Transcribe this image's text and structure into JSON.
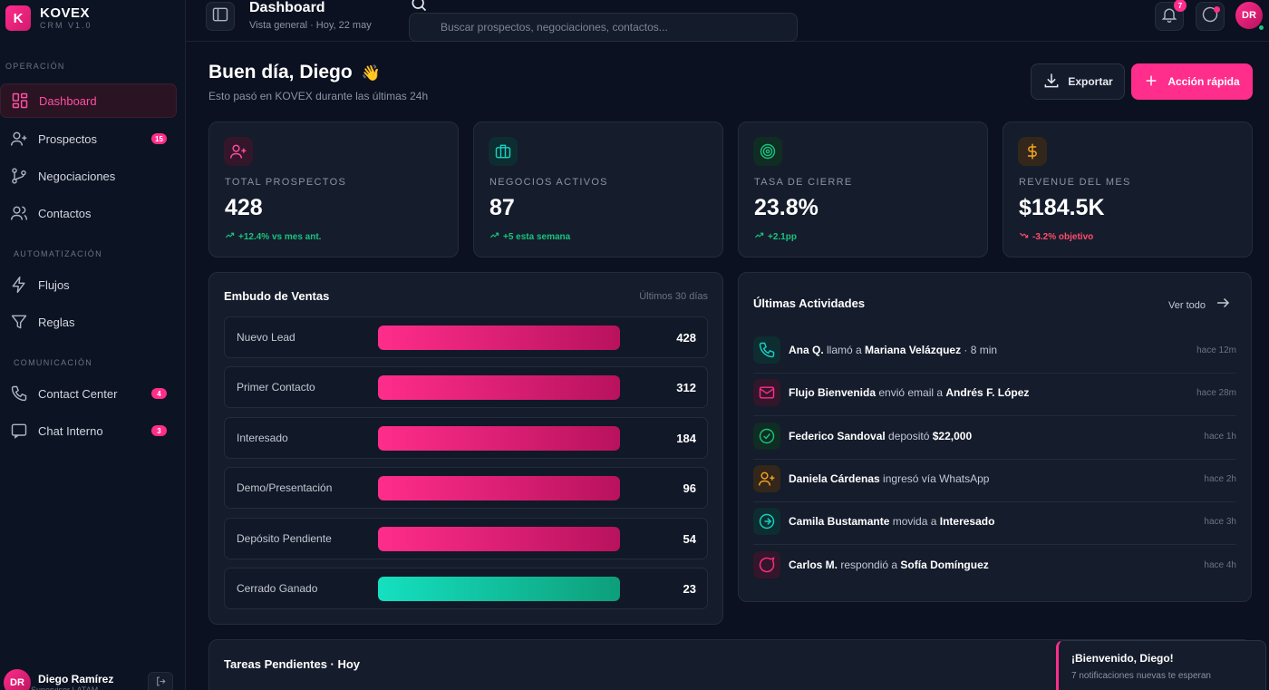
{
  "brand": {
    "letter": "K",
    "name": "KOVEX",
    "version": "CRM V1.0"
  },
  "sidebar": {
    "sections": [
      "OPERACIÓN",
      "AUTOMATIZACIÓN",
      "COMUNICACIÓN"
    ],
    "items": [
      {
        "label": "Dashboard",
        "icon": "dashboard-icon",
        "active": true
      },
      {
        "label": "Prospectos",
        "icon": "user-plus-icon",
        "badge": "15"
      },
      {
        "label": "Negociaciones",
        "icon": "branch-icon"
      },
      {
        "label": "Contactos",
        "icon": "users-icon"
      },
      {
        "label": "Flujos",
        "icon": "bolt-icon"
      },
      {
        "label": "Reglas",
        "icon": "filter-icon"
      },
      {
        "label": "Contact Center",
        "icon": "phone-icon",
        "badge": "4"
      },
      {
        "label": "Chat Interno",
        "icon": "chat-icon",
        "badge": "3"
      }
    ],
    "user": {
      "initials": "DR",
      "name": "Diego Ramírez",
      "role": "Supervisor LATAM"
    }
  },
  "header": {
    "title": "Dashboard",
    "subtitle": "Vista general · Hoy, 22 may",
    "search_placeholder": "Buscar prospectos, negociaciones, contactos...",
    "notif_count": "7",
    "avatar_initials": "DR"
  },
  "main": {
    "greeting": "Buen día, Diego",
    "greeting_emoji": "👋",
    "greeting_sub": "Esto pasó en KOVEX durante las últimas 24h",
    "export_label": "Exportar",
    "quick_label": "Acción rápida"
  },
  "kpis": [
    {
      "label": "TOTAL PROSPECTOS",
      "value": "428",
      "delta": "+12.4% vs mes ant.",
      "trend": "up",
      "icon": "user-plus-icon",
      "color": "#ff2d8b"
    },
    {
      "label": "NEGOCIOS ACTIVOS",
      "value": "87",
      "delta": "+5 esta semana",
      "trend": "up",
      "icon": "briefcase-icon",
      "color": "#14d3c0"
    },
    {
      "label": "TASA DE CIERRE",
      "value": "23.8%",
      "delta": "+2.1pp",
      "trend": "up",
      "icon": "target-icon",
      "color": "#19c37d"
    },
    {
      "label": "REVENUE DEL MES",
      "value": "$184.5K",
      "delta": "-3.2% objetivo",
      "trend": "down",
      "icon": "dollar-icon",
      "color": "#f5a524"
    }
  ],
  "funnel": {
    "title": "Embudo de Ventas",
    "period": "Últimos 30 días",
    "stages": [
      {
        "label": "Nuevo Lead",
        "count": "428",
        "fill": 1.0
      },
      {
        "label": "Primer Contacto",
        "count": "312",
        "fill": 1.0
      },
      {
        "label": "Interesado",
        "count": "184",
        "fill": 1.0
      },
      {
        "label": "Demo/Presentación",
        "count": "96",
        "fill": 1.0
      },
      {
        "label": "Depósito Pendiente",
        "count": "54",
        "fill": 1.0
      },
      {
        "label": "Cerrado Ganado",
        "count": "23",
        "fill": 1.0,
        "won": true
      }
    ]
  },
  "activities": {
    "title": "Últimas Actividades",
    "view_all": "Ver todo",
    "items": [
      {
        "icon": "phone-icon",
        "color": "#14d3c0",
        "parts": [
          [
            "b",
            "Ana Q."
          ],
          [
            "t",
            " llamó a "
          ],
          [
            "b",
            "Mariana Velázquez"
          ],
          [
            "t",
            " · 8 min"
          ]
        ],
        "time": "hace 12m"
      },
      {
        "icon": "mail-icon",
        "color": "#ff2d8b",
        "parts": [
          [
            "b",
            "Flujo Bienvenida"
          ],
          [
            "t",
            " envió email a "
          ],
          [
            "b",
            "Andrés F. López"
          ]
        ],
        "time": "hace 28m"
      },
      {
        "icon": "check-icon",
        "color": "#19c37d",
        "parts": [
          [
            "b",
            "Federico Sandoval"
          ],
          [
            "t",
            " depositó "
          ],
          [
            "b",
            "$22,000"
          ]
        ],
        "time": "hace 1h"
      },
      {
        "icon": "user-plus-icon",
        "color": "#f5a524",
        "parts": [
          [
            "b",
            "Daniela Cárdenas"
          ],
          [
            "t",
            " ingresó vía WhatsApp"
          ]
        ],
        "time": "hace 2h"
      },
      {
        "icon": "arrow-circle-icon",
        "color": "#14d3c0",
        "parts": [
          [
            "b",
            "Camila Bustamante"
          ],
          [
            "t",
            " movida a "
          ],
          [
            "b",
            "Interesado"
          ]
        ],
        "time": "hace 3h"
      },
      {
        "icon": "message-icon",
        "color": "#ff2d8b",
        "parts": [
          [
            "b",
            "Carlos M."
          ],
          [
            "t",
            " respondió a "
          ],
          [
            "b",
            "Sofía Domínguez"
          ]
        ],
        "time": "hace 4h"
      }
    ]
  },
  "tasks": {
    "title": "Tareas Pendientes · Hoy"
  },
  "toast": {
    "title": "¡Bienvenido, Diego!",
    "subtitle": "7 notificaciones nuevas te esperan"
  }
}
